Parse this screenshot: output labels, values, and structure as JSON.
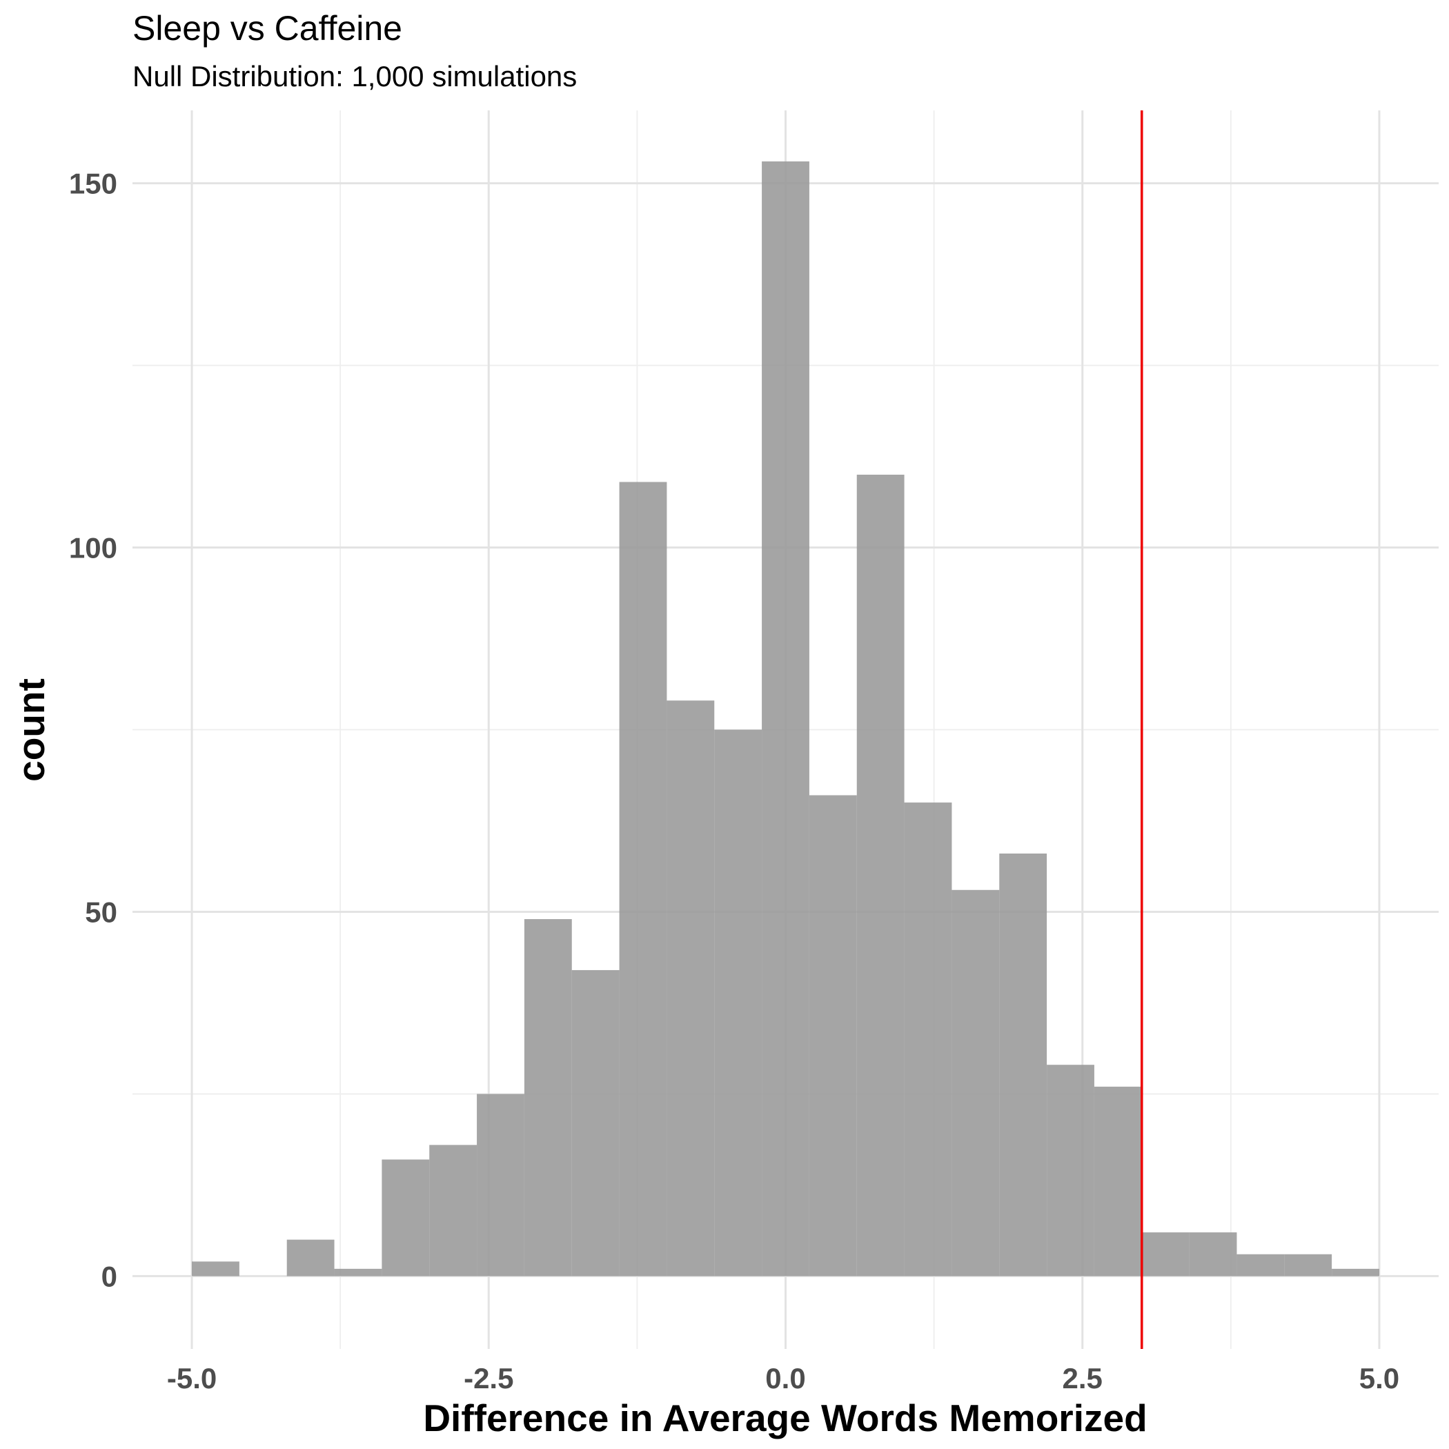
{
  "chart_data": {
    "type": "bar",
    "title": "Sleep vs Caffeine",
    "subtitle": "Null Distribution: 1,000 simulations",
    "xlabel": "Difference in Average Words Memorized",
    "ylabel": "count",
    "xlim": [
      -5.5,
      5.5
    ],
    "ylim": [
      -10,
      160
    ],
    "x_ticks": [
      -5.0,
      -2.5,
      0.0,
      2.5,
      5.0
    ],
    "x_tick_labels": [
      "-5.0",
      "-2.5",
      "0.0",
      "2.5",
      "5.0"
    ],
    "y_ticks": [
      0,
      50,
      100,
      150
    ],
    "y_tick_labels": [
      "0",
      "50",
      "100",
      "150"
    ],
    "grid": true,
    "bin_width": 0.4,
    "bins": [
      {
        "x0": -5.0,
        "x1": -4.6,
        "count": 2
      },
      {
        "x0": -4.6,
        "x1": -4.2,
        "count": 0
      },
      {
        "x0": -4.2,
        "x1": -3.8,
        "count": 5
      },
      {
        "x0": -3.8,
        "x1": -3.4,
        "count": 1
      },
      {
        "x0": -3.4,
        "x1": -3.0,
        "count": 16
      },
      {
        "x0": -3.0,
        "x1": -2.6,
        "count": 18
      },
      {
        "x0": -2.6,
        "x1": -2.2,
        "count": 25
      },
      {
        "x0": -2.2,
        "x1": -1.8,
        "count": 49
      },
      {
        "x0": -1.8,
        "x1": -1.4,
        "count": 42
      },
      {
        "x0": -1.4,
        "x1": -1.0,
        "count": 109
      },
      {
        "x0": -1.0,
        "x1": -0.6,
        "count": 79
      },
      {
        "x0": -0.6,
        "x1": -0.2,
        "count": 75
      },
      {
        "x0": -0.2,
        "x1": 0.2,
        "count": 153
      },
      {
        "x0": 0.2,
        "x1": 0.6,
        "count": 66
      },
      {
        "x0": 0.6,
        "x1": 1.0,
        "count": 110
      },
      {
        "x0": 1.0,
        "x1": 1.4,
        "count": 65
      },
      {
        "x0": 1.4,
        "x1": 1.8,
        "count": 53
      },
      {
        "x0": 1.8,
        "x1": 2.2,
        "count": 58
      },
      {
        "x0": 2.2,
        "x1": 2.6,
        "count": 29
      },
      {
        "x0": 2.6,
        "x1": 3.0,
        "count": 26
      },
      {
        "x0": 3.0,
        "x1": 3.4,
        "count": 6
      },
      {
        "x0": 3.4,
        "x1": 3.8,
        "count": 6
      },
      {
        "x0": 3.8,
        "x1": 4.2,
        "count": 3
      },
      {
        "x0": 4.2,
        "x1": 4.6,
        "count": 3
      },
      {
        "x0": 4.6,
        "x1": 5.0,
        "count": 1
      }
    ],
    "bar_color": "#999999",
    "bar_opacity": 0.88,
    "reference_line": {
      "x": 3.0,
      "color": "#ee0000"
    }
  }
}
